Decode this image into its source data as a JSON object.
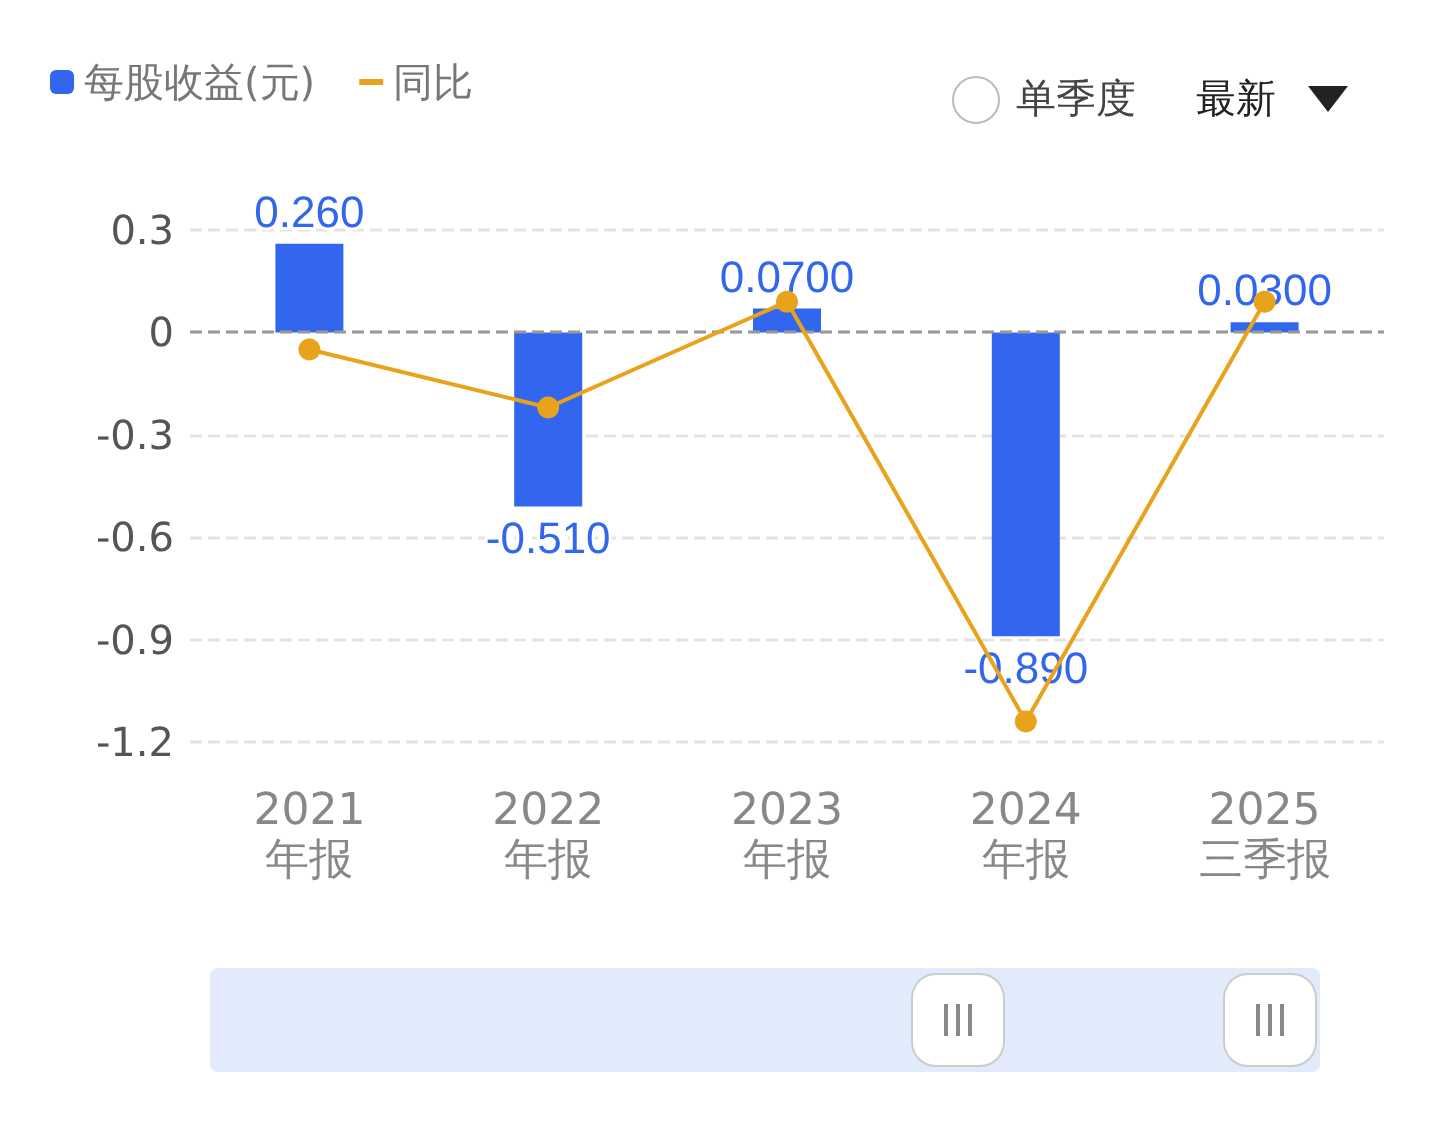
{
  "chart_data": {
    "type": "bar",
    "categories": [
      "2021\n年报",
      "2022\n年报",
      "2023\n年报",
      "2024\n年报",
      "2025\n三季报"
    ],
    "series": [
      {
        "name": "每股收益(元)",
        "color": "#3366ee",
        "values": [
          0.26,
          -0.51,
          0.07,
          -0.89,
          0.03
        ],
        "value_labels": [
          "0.260",
          "-0.510",
          "0.0700",
          "-0.890",
          "0.0300"
        ]
      },
      {
        "name": "同比",
        "type": "line",
        "color": "#e8a21c",
        "values": [
          -0.05,
          -0.22,
          0.09,
          -1.14,
          0.09
        ],
        "marker": "circle"
      }
    ],
    "ylim": [
      -1.2,
      0.3
    ],
    "yticks": [
      -1.2,
      -0.9,
      -0.6,
      -0.3,
      0,
      0.3
    ],
    "grid": "y",
    "legend": "top left",
    "ref_lines": [
      {
        "axis": "y",
        "value": 0,
        "color": "#999999",
        "line_style": "dashed"
      }
    ],
    "annotations": [
      "单季度",
      "最新"
    ]
  }
}
